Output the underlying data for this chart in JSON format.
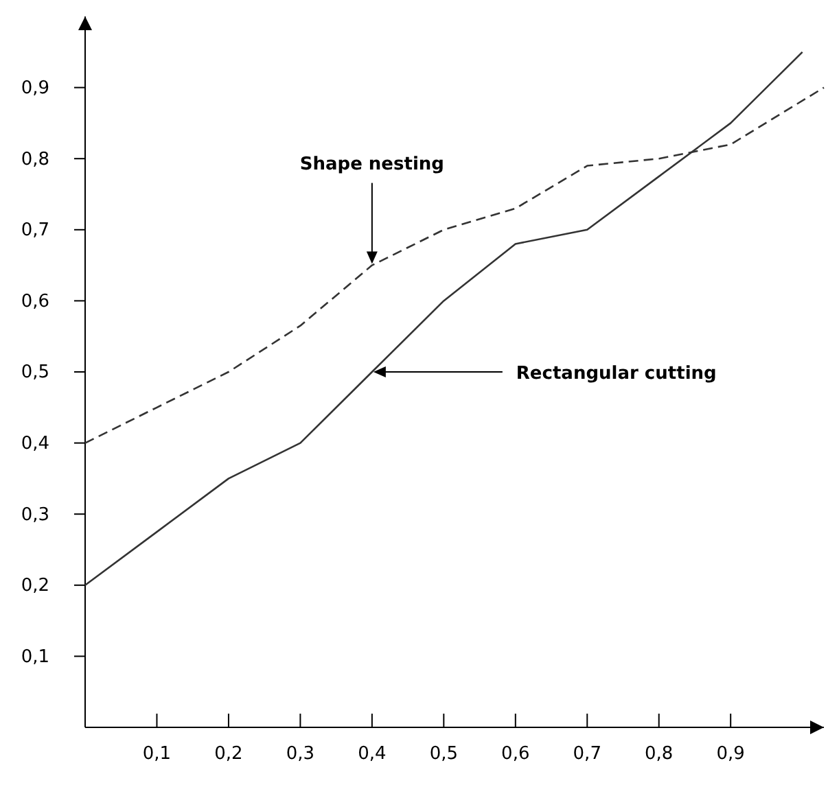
{
  "chart_data": {
    "type": "line",
    "x": [
      0,
      0.1,
      0.2,
      0.3,
      0.4,
      0.5,
      0.6,
      0.7,
      0.8,
      0.9,
      1.03
    ],
    "series": [
      {
        "color": "#333333",
        "line_style": "dashed",
        "values": [
          0.4,
          0.45,
          0.5,
          0.565,
          0.65,
          0.7,
          0.73,
          0.79,
          0.8,
          0.82,
          0.9
        ]
      },
      {
        "color": "#333333",
        "line_style": "solid",
        "x": [
          0,
          0.1,
          0.2,
          0.3,
          0.4,
          0.5,
          0.6,
          0.7,
          0.8,
          0.9,
          1.0
        ],
        "values": [
          0.2,
          0.275,
          0.35,
          0.4,
          0.5,
          0.6,
          0.68,
          0.7,
          0.775,
          0.85,
          0.95
        ]
      }
    ],
    "xlim": [
      0,
      1.03
    ],
    "ylim": [
      0,
      1.0
    ],
    "xticks": [
      {
        "value": 0.1,
        "label": "0,1"
      },
      {
        "value": 0.2,
        "label": "0,2"
      },
      {
        "value": 0.3,
        "label": "0,3"
      },
      {
        "value": 0.4,
        "label": "0,4"
      },
      {
        "value": 0.5,
        "label": "0,5"
      },
      {
        "value": 0.6,
        "label": "0,6"
      },
      {
        "value": 0.7,
        "label": "0,7"
      },
      {
        "value": 0.8,
        "label": "0,8"
      },
      {
        "value": 0.9,
        "label": "0,9"
      }
    ],
    "yticks": [
      {
        "value": 0.1,
        "label": "0,1"
      },
      {
        "value": 0.2,
        "label": "0,2"
      },
      {
        "value": 0.3,
        "label": "0,3"
      },
      {
        "value": 0.4,
        "label": "0,4"
      },
      {
        "value": 0.5,
        "label": "0,5"
      },
      {
        "value": 0.6,
        "label": "0,6"
      },
      {
        "value": 0.7,
        "label": "0,7"
      },
      {
        "value": 0.8,
        "label": "0,8"
      },
      {
        "value": 0.9,
        "label": "0,9"
      }
    ],
    "annotations": [
      {
        "text": "Shape nesting",
        "x": 0.4,
        "y": 0.65
      },
      {
        "text": "Rectangular cutting",
        "x": 0.4,
        "y": 0.5
      }
    ],
    "marker": "none"
  }
}
